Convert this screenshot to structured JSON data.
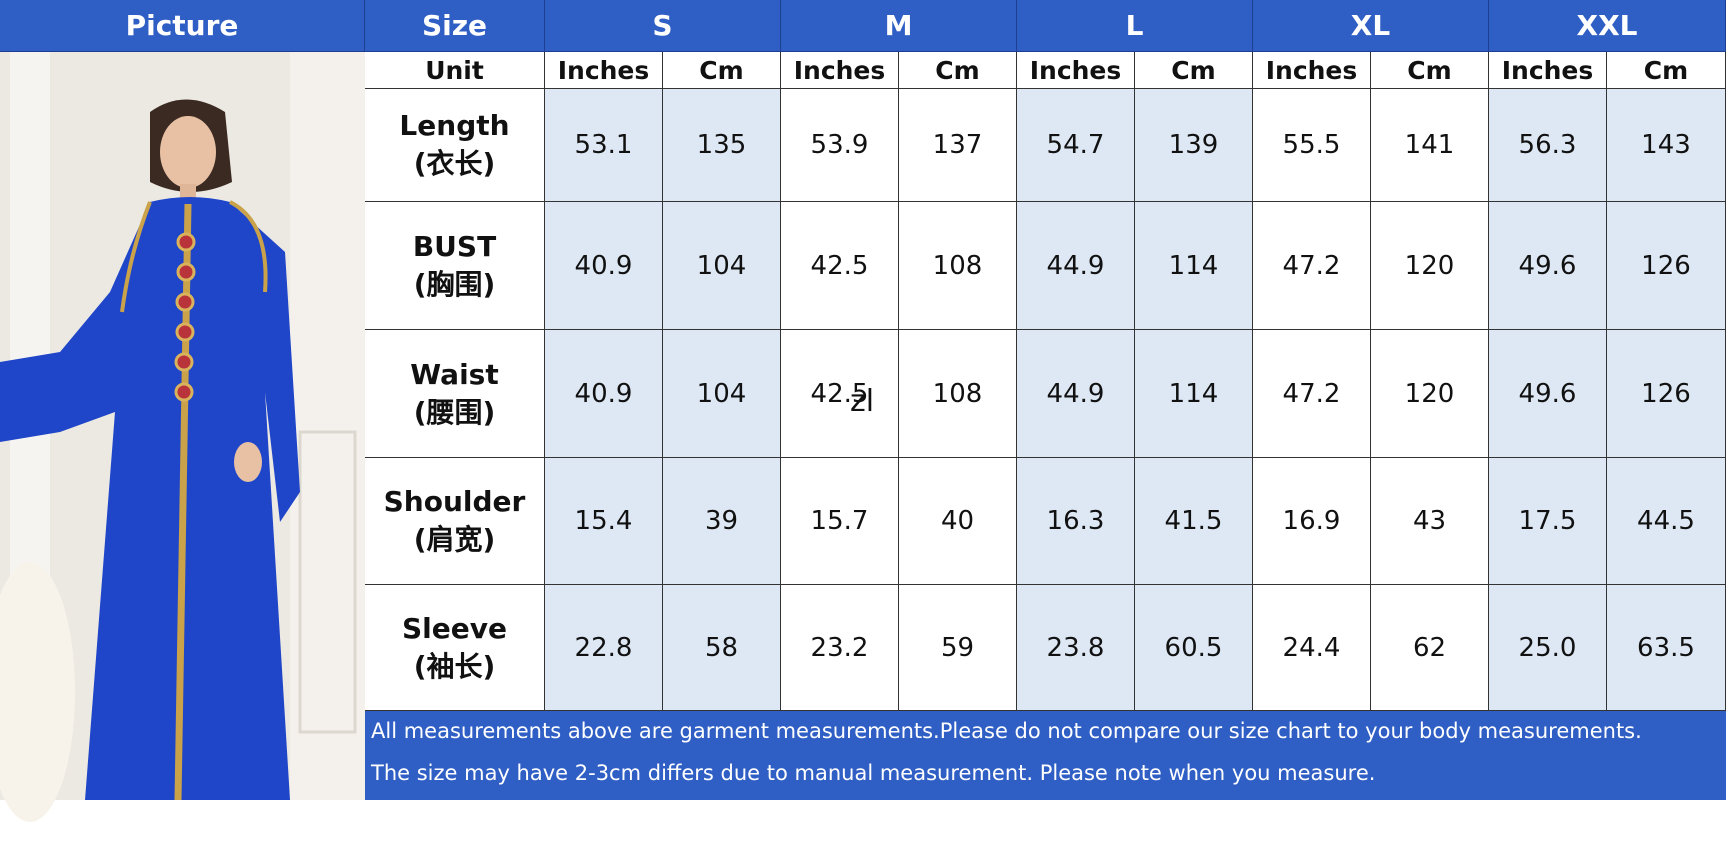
{
  "header": {
    "picture": "Picture",
    "size": "Size",
    "sizes": [
      "S",
      "M",
      "L",
      "XL",
      "XXL"
    ]
  },
  "unit_row": {
    "label": "Unit",
    "units": [
      "Inches",
      "Cm",
      "Inches",
      "Cm",
      "Inches",
      "Cm",
      "Inches",
      "Cm",
      "Inches",
      "Cm"
    ]
  },
  "rows": [
    {
      "label": "Length",
      "label_cn": "(衣长)",
      "values": [
        "53.1",
        "135",
        "53.9",
        "137",
        "54.7",
        "139",
        "55.5",
        "141",
        "56.3",
        "143"
      ]
    },
    {
      "label": "BUST",
      "label_cn": "(胸围)",
      "values": [
        "40.9",
        "104",
        "42.5",
        "108",
        "44.9",
        "114",
        "47.2",
        "120",
        "49.6",
        "126"
      ]
    },
    {
      "label": "Waist",
      "label_cn": "(腰围)",
      "values": [
        "40.9",
        "104",
        "42.5",
        "108",
        "44.9",
        "114",
        "47.2",
        "120",
        "49.6",
        "126"
      ]
    },
    {
      "label": "Shoulder",
      "label_cn": "(肩宽)",
      "values": [
        "15.4",
        "39",
        "15.7",
        "40",
        "16.3",
        "41.5",
        "16.9",
        "43",
        "17.5",
        "44.5"
      ]
    },
    {
      "label": "Sleeve",
      "label_cn": "(袖长)",
      "values": [
        "22.8",
        "58",
        "23.2",
        "59",
        "23.8",
        "60.5",
        "24.4",
        "62",
        "25.0",
        "63.5"
      ]
    }
  ],
  "watermark": "zl",
  "notes": [
    "All measurements above are garment measurements.Please do not compare our size chart to your body measurements.",
    "The size may have 2-3cm differs due to manual measurement. Please note when you measure."
  ]
}
